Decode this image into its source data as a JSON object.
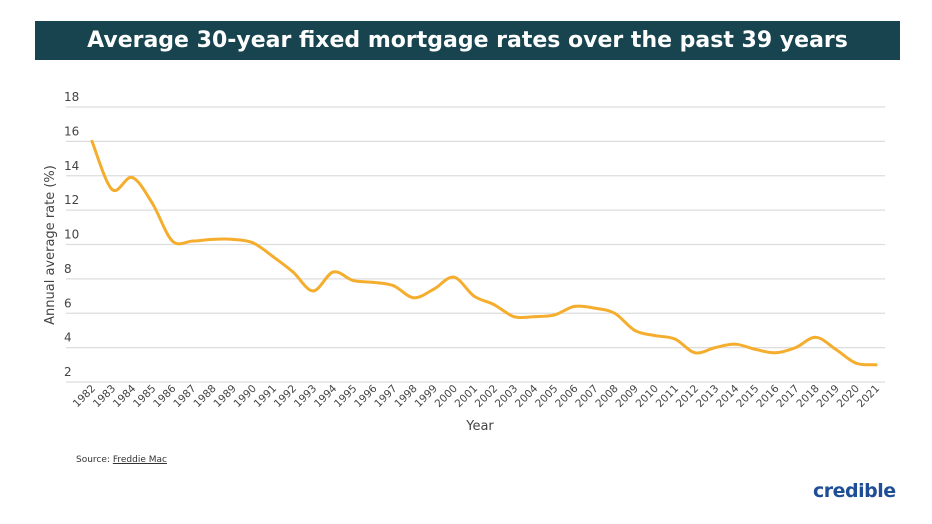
{
  "chart_data": {
    "type": "line",
    "title": "Average 30-year fixed mortgage rates over the past 39 years",
    "xlabel": "Year",
    "ylabel": "Annual average rate (%)",
    "ylim": [
      2,
      18
    ],
    "yticks": [
      2,
      4,
      6,
      8,
      10,
      12,
      14,
      16,
      18
    ],
    "grid": true,
    "line_color": "#f5ad2e",
    "categories": [
      "1982",
      "1983",
      "1984",
      "1985",
      "1986",
      "1987",
      "1988",
      "1989",
      "1990",
      "1991",
      "1992",
      "1993",
      "1994",
      "1995",
      "1996",
      "1997",
      "1998",
      "1999",
      "2000",
      "2001",
      "2002",
      "2003",
      "2004",
      "2005",
      "2006",
      "2007",
      "2008",
      "2009",
      "2010",
      "2011",
      "2012",
      "2013",
      "2014",
      "2015",
      "2016",
      "2017",
      "2018",
      "2019",
      "2020",
      "2021"
    ],
    "values": [
      16.0,
      13.2,
      13.9,
      12.4,
      10.2,
      10.2,
      10.3,
      10.3,
      10.1,
      9.3,
      8.4,
      7.3,
      8.4,
      7.9,
      7.8,
      7.6,
      6.9,
      7.4,
      8.1,
      7.0,
      6.5,
      5.8,
      5.8,
      5.9,
      6.4,
      6.3,
      6.0,
      5.0,
      4.7,
      4.5,
      3.7,
      4.0,
      4.2,
      3.9,
      3.7,
      4.0,
      4.6,
      3.9,
      3.1,
      3.0
    ]
  },
  "source": {
    "label": "Source:",
    "link": "Freddie Mac"
  },
  "logo": "credible"
}
